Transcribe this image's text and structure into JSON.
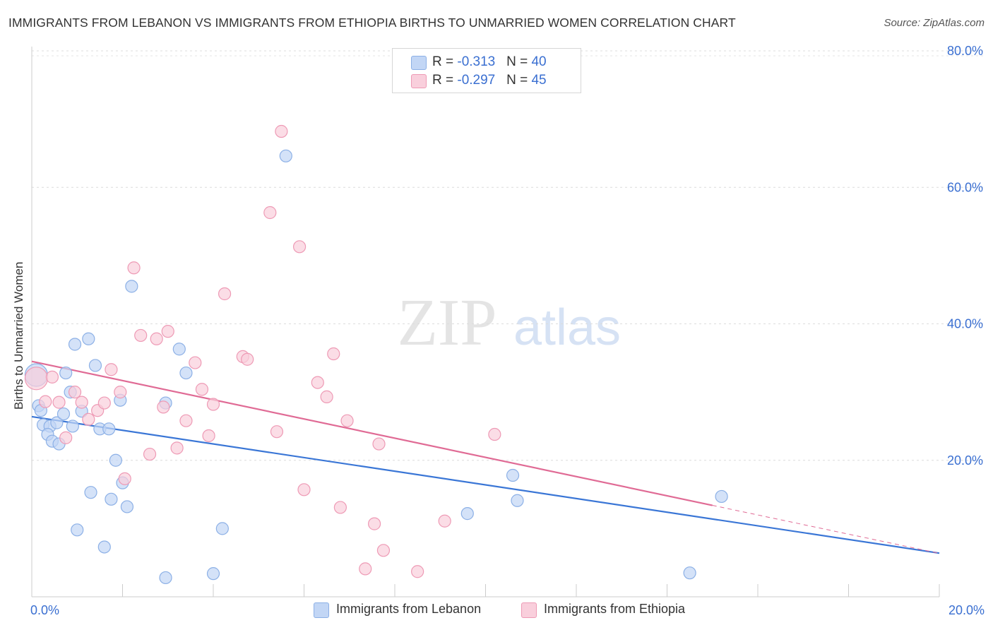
{
  "title": "IMMIGRANTS FROM LEBANON VS IMMIGRANTS FROM ETHIOPIA BIRTHS TO UNMARRIED WOMEN CORRELATION CHART",
  "source": "Source: ZipAtlas.com",
  "watermark": {
    "zip": "ZIP",
    "atlas": "atlas"
  },
  "legend": {
    "lebanon": {
      "r_label": "R = ",
      "r_value": "-0.313",
      "n_label": "N = ",
      "n_value": "40"
    },
    "ethiopia": {
      "r_label": "R = ",
      "r_value": "-0.297",
      "n_label": "N = ",
      "n_value": "45"
    }
  },
  "chart_data": {
    "type": "scatter",
    "title": "IMMIGRANTS FROM LEBANON VS IMMIGRANTS FROM ETHIOPIA BIRTHS TO UNMARRIED WOMEN CORRELATION CHART",
    "xlabel": "",
    "ylabel": "Births to Unmarried Women",
    "xlim": [
      0,
      20
    ],
    "ylim": [
      0,
      80
    ],
    "x_tick_labels": [
      "0.0%",
      "20.0%"
    ],
    "y_ticks": [
      20,
      40,
      60,
      80
    ],
    "y_tick_labels": [
      "20.0%",
      "40.0%",
      "60.0%",
      "80.0%"
    ],
    "grid": "horizontal dashed",
    "legend_position": "top-center",
    "colors": {
      "lebanon_fill": "#c2d6f5",
      "lebanon_stroke": "#8cb0e6",
      "lebanon_line": "#3a76d6",
      "ethiopia_fill": "#f9cfdc",
      "ethiopia_stroke": "#ee9ab5",
      "ethiopia_line": "#e06b95",
      "tick_label": "#3a6fd1"
    },
    "series": [
      {
        "name": "Immigrants from Lebanon",
        "key": "lebanon",
        "trend": {
          "x0": 0,
          "y0": 26.4,
          "x1": 20,
          "y1": 6.4
        },
        "points": [
          [
            0.1,
            32.5
          ],
          [
            0.15,
            28
          ],
          [
            0.2,
            27.3
          ],
          [
            0.25,
            25.2
          ],
          [
            0.4,
            25
          ],
          [
            0.35,
            23.8
          ],
          [
            0.45,
            22.8
          ],
          [
            0.55,
            25.5
          ],
          [
            0.6,
            22.4
          ],
          [
            0.7,
            26.8
          ],
          [
            0.75,
            32.8
          ],
          [
            0.85,
            30
          ],
          [
            0.9,
            25
          ],
          [
            0.95,
            37
          ],
          [
            1.1,
            27.2
          ],
          [
            1.25,
            37.8
          ],
          [
            1.3,
            15.3
          ],
          [
            1.0,
            9.8
          ],
          [
            1.4,
            33.9
          ],
          [
            1.5,
            24.6
          ],
          [
            1.6,
            7.3
          ],
          [
            1.7,
            24.6
          ],
          [
            1.75,
            14.3
          ],
          [
            1.85,
            20
          ],
          [
            1.95,
            28.8
          ],
          [
            2.0,
            16.7
          ],
          [
            2.1,
            13.2
          ],
          [
            2.2,
            45.5
          ],
          [
            2.95,
            28.4
          ],
          [
            2.95,
            2.8
          ],
          [
            3.25,
            36.3
          ],
          [
            3.4,
            32.8
          ],
          [
            4.0,
            3.4
          ],
          [
            4.2,
            10
          ],
          [
            5.6,
            64.6
          ],
          [
            9.6,
            12.2
          ],
          [
            10.6,
            17.8
          ],
          [
            10.7,
            14.1
          ],
          [
            14.5,
            3.5
          ],
          [
            15.2,
            14.7
          ]
        ]
      },
      {
        "name": "Immigrants from Ethiopia",
        "key": "ethiopia",
        "trend": {
          "x0": 0,
          "y0": 34.5,
          "x1": 15,
          "y1": 13.4
        },
        "points": [
          [
            0.1,
            32
          ],
          [
            0.3,
            28.6
          ],
          [
            0.45,
            32.2
          ],
          [
            0.6,
            28.5
          ],
          [
            0.75,
            23.3
          ],
          [
            0.95,
            30
          ],
          [
            1.1,
            28.5
          ],
          [
            1.25,
            26
          ],
          [
            1.45,
            27.3
          ],
          [
            1.6,
            28.4
          ],
          [
            1.75,
            33.3
          ],
          [
            1.95,
            30
          ],
          [
            2.05,
            17.3
          ],
          [
            2.25,
            48.2
          ],
          [
            2.4,
            38.3
          ],
          [
            2.6,
            20.9
          ],
          [
            2.75,
            37.8
          ],
          [
            2.9,
            27.8
          ],
          [
            3.0,
            38.9
          ],
          [
            3.2,
            21.8
          ],
          [
            3.4,
            25.8
          ],
          [
            3.6,
            34.3
          ],
          [
            3.75,
            30.4
          ],
          [
            3.9,
            23.6
          ],
          [
            4.0,
            28.2
          ],
          [
            4.25,
            44.4
          ],
          [
            4.65,
            35.2
          ],
          [
            4.75,
            34.8
          ],
          [
            5.25,
            56.3
          ],
          [
            5.4,
            24.2
          ],
          [
            5.5,
            68.2
          ],
          [
            5.9,
            51.3
          ],
          [
            6.0,
            15.7
          ],
          [
            6.3,
            31.4
          ],
          [
            6.5,
            29.3
          ],
          [
            6.65,
            35.6
          ],
          [
            6.8,
            13.1
          ],
          [
            6.95,
            25.8
          ],
          [
            7.35,
            4.1
          ],
          [
            7.55,
            10.7
          ],
          [
            7.65,
            22.4
          ],
          [
            7.75,
            6.8
          ],
          [
            8.5,
            3.7
          ],
          [
            9.1,
            11.1
          ],
          [
            10.2,
            23.8
          ]
        ]
      }
    ]
  },
  "bottom_legend": {
    "lebanon": "Immigrants from Lebanon",
    "ethiopia": "Immigrants from Ethiopia"
  }
}
